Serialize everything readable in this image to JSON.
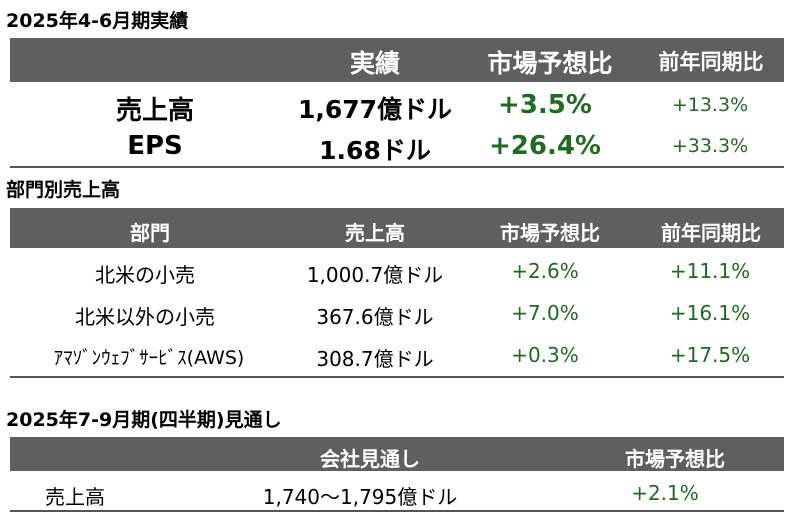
{
  "section1": {
    "title": "2025年4-6月期実績",
    "headers": {
      "actual": "実績",
      "consensus_ratio": "市場予想比",
      "yoy": "前年同期比"
    },
    "rows": [
      {
        "label": "売上高",
        "actual": "1,677億ドル",
        "consensus": "+3.5%",
        "yoy": "+13.3%"
      },
      {
        "label": "EPS",
        "actual": "1.68ドル",
        "consensus": "+26.4%",
        "yoy": "+33.3%"
      }
    ]
  },
  "section2": {
    "title": "部門別売上高",
    "headers": {
      "segment": "部門",
      "revenue": "売上高",
      "consensus_ratio": "市場予想比",
      "yoy": "前年同期比"
    },
    "rows": [
      {
        "segment": "北米の小売",
        "revenue": "1,000.7億ドル",
        "consensus": "+2.6%",
        "yoy": "+11.1%"
      },
      {
        "segment": "北米以外の小売",
        "revenue": "367.6億ドル",
        "consensus": "+7.0%",
        "yoy": "+16.1%"
      },
      {
        "segment": "ｱﾏｿﾞﾝｳｪﾌﾞｻｰﾋﾞｽ(AWS)",
        "revenue": "308.7億ドル",
        "consensus": "+0.3%",
        "yoy": "+17.5%"
      }
    ]
  },
  "section3": {
    "title": "2025年7-9月期(四半期)見通し",
    "headers": {
      "guidance": "会社見通し",
      "consensus_ratio": "市場予想比"
    },
    "rows": [
      {
        "label": "売上高",
        "guidance": "1,740～1,795億ドル",
        "consensus": "+2.1%"
      }
    ]
  },
  "colors": {
    "header_bg": "#5f5f5f",
    "header_text": "#ffffff",
    "positive": "#1f6b1f",
    "rule": "#555555"
  }
}
